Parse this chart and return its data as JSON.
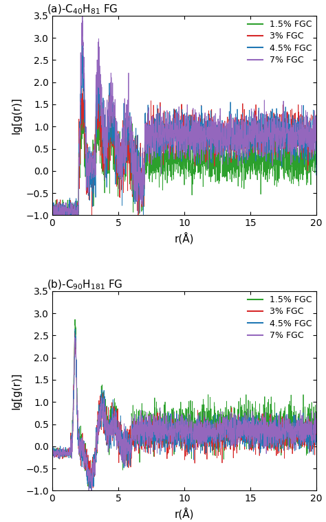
{
  "panel_a_title": "(a)-C$_{40}$H$_{81}$ FG",
  "panel_b_title": "(b)-C$_{90}$H$_{181}$ FG",
  "xlabel": "r(Å)",
  "ylabel": "lg[g(r)]",
  "xlim": [
    0,
    20
  ],
  "ylim": [
    -1.0,
    3.5
  ],
  "yticks": [
    -1.0,
    -0.5,
    0.0,
    0.5,
    1.0,
    1.5,
    2.0,
    2.5,
    3.0,
    3.5
  ],
  "xticks": [
    0,
    5,
    10,
    15,
    20
  ],
  "legend_labels": [
    "1.5% FGC",
    "3% FGC",
    "4.5% FGC",
    "7% FGC"
  ],
  "colors": [
    "#2ca02c",
    "#d62728",
    "#1f77b4",
    "#9467bd"
  ],
  "linewidth": 0.6,
  "n_points": 2000
}
